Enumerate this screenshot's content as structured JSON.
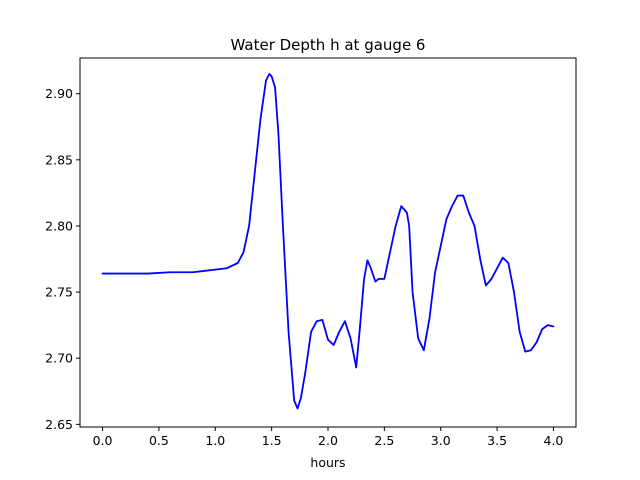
{
  "chart_data": {
    "type": "line",
    "title": "Water Depth h at gauge 6",
    "xlabel": "hours",
    "ylabel": "",
    "xlim": [
      -0.2,
      4.2
    ],
    "ylim": [
      2.648,
      2.927
    ],
    "x_ticks": [
      {
        "value": 0.0,
        "label": "0.0"
      },
      {
        "value": 0.5,
        "label": "0.5"
      },
      {
        "value": 1.0,
        "label": "1.0"
      },
      {
        "value": 1.5,
        "label": "1.5"
      },
      {
        "value": 2.0,
        "label": "2.0"
      },
      {
        "value": 2.5,
        "label": "2.5"
      },
      {
        "value": 3.0,
        "label": "3.0"
      },
      {
        "value": 3.5,
        "label": "3.5"
      },
      {
        "value": 4.0,
        "label": "4.0"
      }
    ],
    "y_ticks": [
      {
        "value": 2.65,
        "label": "2.65"
      },
      {
        "value": 2.7,
        "label": "2.70"
      },
      {
        "value": 2.75,
        "label": "2.75"
      },
      {
        "value": 2.8,
        "label": "2.80"
      },
      {
        "value": 2.85,
        "label": "2.85"
      },
      {
        "value": 2.9,
        "label": "2.90"
      }
    ],
    "grid": false,
    "legend": "none",
    "line_color": "#0000ff",
    "series": [
      {
        "x": [
          0.0,
          0.2,
          0.4,
          0.6,
          0.8,
          0.9,
          1.0,
          1.1,
          1.2,
          1.25,
          1.3,
          1.35,
          1.4,
          1.45,
          1.48,
          1.5,
          1.53,
          1.56,
          1.6,
          1.65,
          1.7,
          1.73,
          1.76,
          1.8,
          1.85,
          1.9,
          1.95,
          2.0,
          2.05,
          2.1,
          2.15,
          2.2,
          2.25,
          2.28,
          2.32,
          2.35,
          2.38,
          2.42,
          2.45,
          2.5,
          2.55,
          2.6,
          2.65,
          2.7,
          2.72,
          2.75,
          2.8,
          2.85,
          2.9,
          2.95,
          3.0,
          3.05,
          3.1,
          3.15,
          3.2,
          3.25,
          3.3,
          3.35,
          3.4,
          3.45,
          3.5,
          3.55,
          3.6,
          3.65,
          3.7,
          3.75,
          3.8,
          3.85,
          3.9,
          3.95,
          4.0
        ],
        "y": [
          2.764,
          2.764,
          2.764,
          2.765,
          2.765,
          2.766,
          2.767,
          2.768,
          2.772,
          2.78,
          2.8,
          2.84,
          2.88,
          2.91,
          2.915,
          2.913,
          2.905,
          2.87,
          2.8,
          2.72,
          2.668,
          2.662,
          2.67,
          2.69,
          2.72,
          2.728,
          2.729,
          2.714,
          2.71,
          2.72,
          2.728,
          2.715,
          2.693,
          2.72,
          2.76,
          2.774,
          2.768,
          2.758,
          2.76,
          2.76,
          2.78,
          2.8,
          2.815,
          2.81,
          2.8,
          2.75,
          2.715,
          2.706,
          2.73,
          2.765,
          2.785,
          2.805,
          2.815,
          2.823,
          2.823,
          2.81,
          2.8,
          2.775,
          2.755,
          2.76,
          2.768,
          2.776,
          2.772,
          2.75,
          2.72,
          2.705,
          2.706,
          2.712,
          2.722,
          2.725,
          2.724
        ]
      }
    ]
  }
}
